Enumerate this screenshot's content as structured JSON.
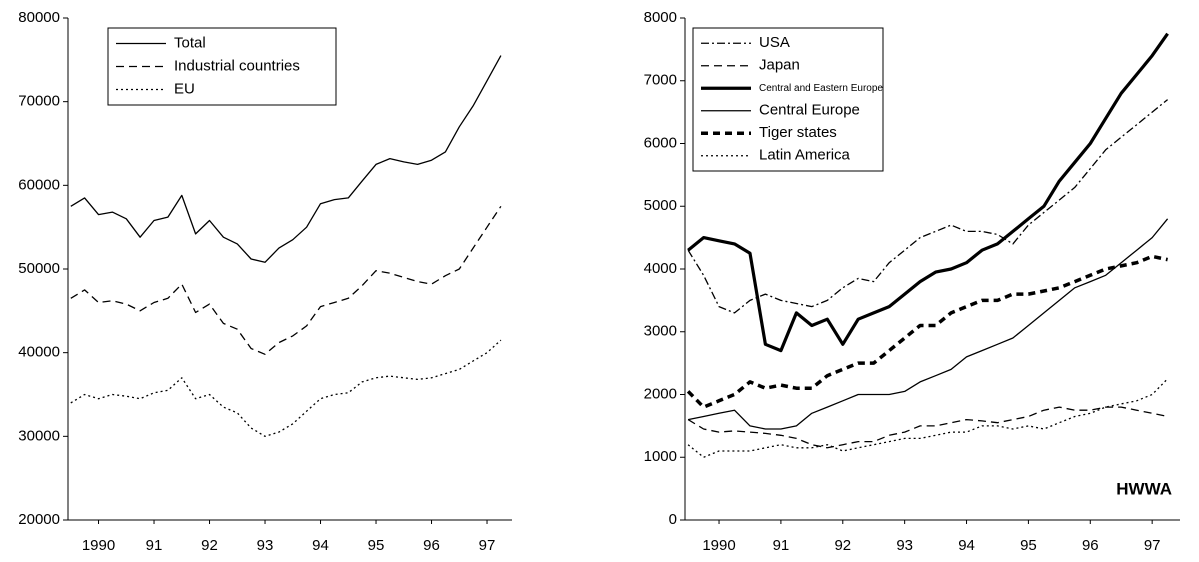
{
  "chart_data": [
    {
      "type": "line",
      "x": [
        1990.0,
        1990.25,
        1990.5,
        1990.75,
        1991.0,
        1991.25,
        1991.5,
        1991.75,
        1992.0,
        1992.25,
        1992.5,
        1992.75,
        1993.0,
        1993.25,
        1993.5,
        1993.75,
        1994.0,
        1994.25,
        1994.5,
        1994.75,
        1995.0,
        1995.25,
        1995.5,
        1995.75,
        1996.0,
        1996.25,
        1996.5,
        1996.75,
        1997.0,
        1997.25,
        1997.5,
        1997.75
      ],
      "xlim": [
        1989.95,
        1997.95
      ],
      "xticks": [
        {
          "value": 1990.5,
          "label": "1990"
        },
        {
          "value": 1991.5,
          "label": "91"
        },
        {
          "value": 1992.5,
          "label": "92"
        },
        {
          "value": 1993.5,
          "label": "93"
        },
        {
          "value": 1994.5,
          "label": "94"
        },
        {
          "value": 1995.5,
          "label": "95"
        },
        {
          "value": 1996.5,
          "label": "96"
        },
        {
          "value": 1997.5,
          "label": "97"
        }
      ],
      "ylim": [
        20000,
        80000
      ],
      "yticks": [
        20000,
        30000,
        40000,
        50000,
        60000,
        70000,
        80000
      ],
      "legend": "upper left",
      "series": [
        {
          "name": "Total",
          "color": "#000000",
          "linestyle": "solid",
          "values": [
            57500,
            58500,
            56500,
            56800,
            56000,
            53800,
            55800,
            56200,
            58800,
            54200,
            55800,
            53800,
            53000,
            51200,
            50800,
            52500,
            53500,
            55000,
            57800,
            58300,
            58500,
            60500,
            62500,
            63200,
            62800,
            62500,
            63000,
            64000,
            67000,
            69500,
            72500,
            75500
          ]
        },
        {
          "name": "Industrial countries",
          "color": "#000000",
          "linestyle": "dashed",
          "values": [
            46500,
            47500,
            46000,
            46200,
            45800,
            45000,
            46000,
            46500,
            48200,
            44800,
            45800,
            43500,
            42800,
            40500,
            39800,
            41200,
            42000,
            43200,
            45500,
            46000,
            46500,
            48000,
            49800,
            49500,
            49000,
            48500,
            48200,
            49200,
            50000,
            52500,
            55000,
            57500
          ]
        },
        {
          "name": "EU",
          "color": "#000000",
          "linestyle": "dotted",
          "values": [
            34000,
            35000,
            34500,
            35000,
            34800,
            34500,
            35200,
            35500,
            37000,
            34500,
            35000,
            33500,
            32800,
            31000,
            30000,
            30500,
            31500,
            33000,
            34500,
            35000,
            35200,
            36500,
            37000,
            37200,
            37000,
            36800,
            37000,
            37500,
            38000,
            39000,
            40000,
            41500
          ]
        }
      ]
    },
    {
      "type": "line",
      "x": [
        1990.0,
        1990.25,
        1990.5,
        1990.75,
        1991.0,
        1991.25,
        1991.5,
        1991.75,
        1992.0,
        1992.25,
        1992.5,
        1992.75,
        1993.0,
        1993.25,
        1993.5,
        1993.75,
        1994.0,
        1994.25,
        1994.5,
        1994.75,
        1995.0,
        1995.25,
        1995.5,
        1995.75,
        1996.0,
        1996.25,
        1996.5,
        1996.75,
        1997.0,
        1997.25,
        1997.5,
        1997.75
      ],
      "xlim": [
        1989.95,
        1997.95
      ],
      "xticks": [
        {
          "value": 1990.5,
          "label": "1990"
        },
        {
          "value": 1991.5,
          "label": "91"
        },
        {
          "value": 1992.5,
          "label": "92"
        },
        {
          "value": 1993.5,
          "label": "93"
        },
        {
          "value": 1994.5,
          "label": "94"
        },
        {
          "value": 1995.5,
          "label": "95"
        },
        {
          "value": 1996.5,
          "label": "96"
        },
        {
          "value": 1997.5,
          "label": "97"
        }
      ],
      "ylim": [
        0,
        8000
      ],
      "yticks": [
        0,
        1000,
        2000,
        3000,
        4000,
        5000,
        6000,
        7000,
        8000
      ],
      "legend": "upper left",
      "annotation": "HWWA",
      "series": [
        {
          "name": "USA",
          "color": "#000000",
          "linestyle": "dash-dot",
          "values": [
            4300,
            3900,
            3400,
            3300,
            3500,
            3600,
            3500,
            3450,
            3400,
            3500,
            3700,
            3850,
            3800,
            4100,
            4300,
            4500,
            4600,
            4700,
            4600,
            4600,
            4550,
            4400,
            4700,
            4900,
            5100,
            5300,
            5600,
            5900,
            6100,
            6300,
            6500,
            6700
          ]
        },
        {
          "name": "Japan",
          "color": "#000000",
          "linestyle": "dashed",
          "values": [
            1600,
            1450,
            1400,
            1420,
            1400,
            1380,
            1350,
            1300,
            1200,
            1150,
            1200,
            1250,
            1250,
            1350,
            1400,
            1500,
            1500,
            1550,
            1600,
            1580,
            1550,
            1600,
            1650,
            1750,
            1800,
            1750,
            1750,
            1800,
            1800,
            1750,
            1700,
            1650
          ]
        },
        {
          "name": "Central and Eastern Europe",
          "color": "#000000",
          "linestyle": "bold-solid",
          "values": [
            4300,
            4500,
            4450,
            4400,
            4250,
            2800,
            2700,
            3300,
            3100,
            3200,
            2800,
            3200,
            3300,
            3400,
            3600,
            3800,
            3950,
            4000,
            4100,
            4300,
            4400,
            4600,
            4800,
            5000,
            5400,
            5700,
            6000,
            6400,
            6800,
            7100,
            7400,
            7750
          ]
        },
        {
          "name": "Central Europe",
          "color": "#000000",
          "linestyle": "solid",
          "values": [
            1600,
            1650,
            1700,
            1750,
            1500,
            1450,
            1450,
            1500,
            1700,
            1800,
            1900,
            2000,
            2000,
            2000,
            2050,
            2200,
            2300,
            2400,
            2600,
            2700,
            2800,
            2900,
            3100,
            3300,
            3500,
            3700,
            3800,
            3900,
            4100,
            4300,
            4500,
            4800
          ]
        },
        {
          "name": "Tiger states",
          "color": "#000000",
          "linestyle": "bold-dashed",
          "values": [
            2050,
            1800,
            1900,
            2000,
            2200,
            2100,
            2150,
            2100,
            2100,
            2300,
            2400,
            2500,
            2500,
            2700,
            2900,
            3100,
            3100,
            3300,
            3400,
            3500,
            3500,
            3600,
            3600,
            3650,
            3700,
            3800,
            3900,
            4000,
            4050,
            4100,
            4200,
            4150
          ]
        },
        {
          "name": "Latin America",
          "color": "#000000",
          "linestyle": "dotted",
          "values": [
            1200,
            1000,
            1100,
            1100,
            1100,
            1150,
            1200,
            1150,
            1150,
            1200,
            1100,
            1150,
            1200,
            1250,
            1300,
            1300,
            1350,
            1400,
            1400,
            1500,
            1500,
            1450,
            1500,
            1450,
            1550,
            1650,
            1700,
            1800,
            1850,
            1900,
            2000,
            2250
          ]
        }
      ]
    }
  ]
}
